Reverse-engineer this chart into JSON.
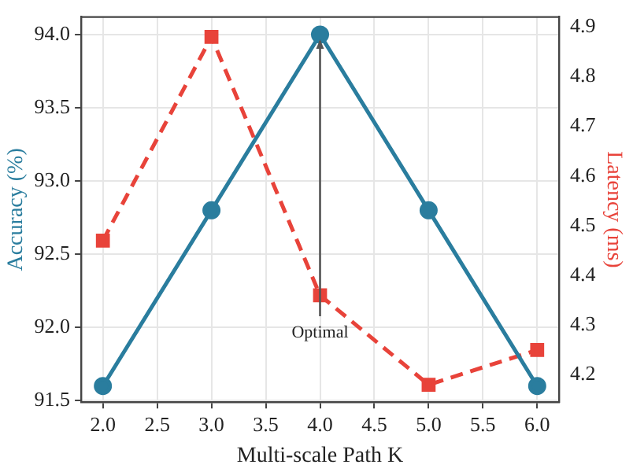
{
  "chart_data": {
    "type": "line",
    "xlabel": "Multi-scale Path K",
    "ylabel": "Accuracy (%)",
    "y2label": "Latency (ms)",
    "x": [
      2,
      3,
      4,
      5,
      6
    ],
    "series": [
      {
        "color": "#2a7d9e",
        "values": [
          91.6,
          92.8,
          94.0,
          92.8,
          91.6
        ],
        "marker": "circle",
        "line_style": "solid"
      },
      {
        "color": "#e8433a",
        "values": [
          4.47,
          4.88,
          4.36,
          4.18,
          4.25
        ],
        "marker": "square",
        "line_style": "dashed",
        "axis": "y2"
      }
    ],
    "xlim": [
      1.8,
      6.2
    ],
    "xticks": [
      {
        "value": 2,
        "label": "2.0"
      },
      {
        "value": 2.5,
        "label": "2.5"
      },
      {
        "value": 3,
        "label": "3.0"
      },
      {
        "value": 3.5,
        "label": "3.5"
      },
      {
        "value": 4,
        "label": "4.0"
      },
      {
        "value": 4.5,
        "label": "4.5"
      },
      {
        "value": 5,
        "label": "5.0"
      },
      {
        "value": 5.5,
        "label": "5.5"
      },
      {
        "value": 6,
        "label": "6.0"
      }
    ],
    "ylim": [
      91.49,
      94.12
    ],
    "yticks": [
      {
        "value": 91.5,
        "label": "91.5"
      },
      {
        "value": 92,
        "label": "92.0"
      },
      {
        "value": 92.5,
        "label": "92.5"
      },
      {
        "value": 93,
        "label": "93.0"
      },
      {
        "value": 93.5,
        "label": "93.5"
      },
      {
        "value": 94,
        "label": "94.0"
      }
    ],
    "y2lim": [
      4.145,
      4.92
    ],
    "y2ticks": [
      {
        "value": 4.2,
        "label": "4.2"
      },
      {
        "value": 4.3,
        "label": "4.3"
      },
      {
        "value": 4.4,
        "label": "4.4"
      },
      {
        "value": 4.5,
        "label": "4.5"
      },
      {
        "value": 4.6,
        "label": "4.6"
      },
      {
        "value": 4.7,
        "label": "4.7"
      },
      {
        "value": 4.8,
        "label": "4.8"
      },
      {
        "value": 4.9,
        "label": "4.9"
      }
    ],
    "annotations": [
      {
        "text": "Optimal",
        "x": 4,
        "y": 94.0
      }
    ],
    "grid": true,
    "legend": false
  }
}
